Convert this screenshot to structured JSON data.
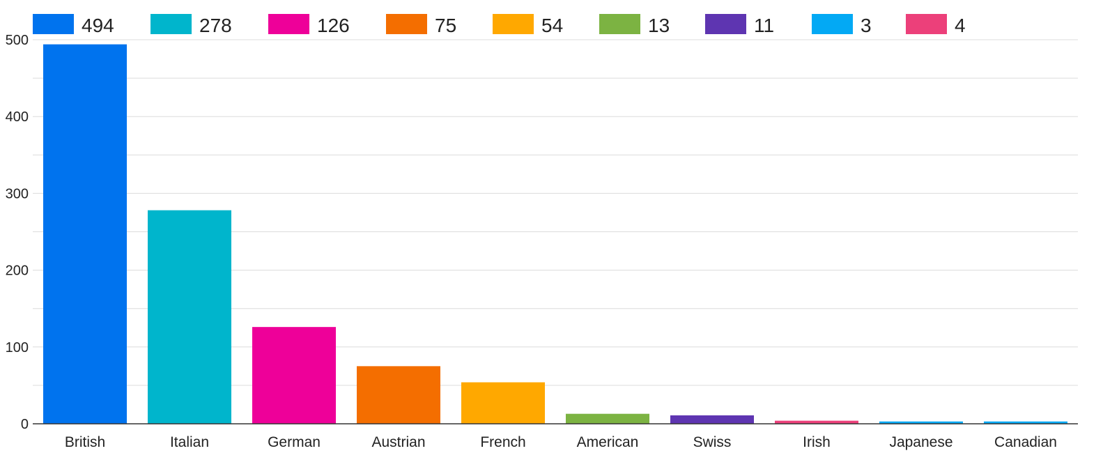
{
  "chart_data": {
    "type": "bar",
    "title": "",
    "xlabel": "",
    "ylabel": "",
    "categories": [
      "British",
      "Italian",
      "German",
      "Austrian",
      "French",
      "American",
      "Swiss",
      "Irish",
      "Japanese",
      "Canadian"
    ],
    "values": [
      494,
      278,
      126,
      75,
      54,
      13,
      11,
      4,
      3,
      3
    ],
    "colors": [
      "#0073ee",
      "#00b5cc",
      "#ee0099",
      "#f46e00",
      "#ffa800",
      "#7cb342",
      "#5e35b1",
      "#ec407a",
      "#03a9f4",
      "#03a9f4"
    ],
    "ylim": [
      0,
      500
    ],
    "yticks": [
      0,
      100,
      200,
      300,
      400,
      500
    ],
    "grid": true,
    "legend": {
      "placement": "top",
      "entries": [
        {
          "label": "494",
          "color": "#0073ee"
        },
        {
          "label": "278",
          "color": "#00b5cc"
        },
        {
          "label": "126",
          "color": "#ee0099"
        },
        {
          "label": "75",
          "color": "#f46e00"
        },
        {
          "label": "54",
          "color": "#ffa800"
        },
        {
          "label": "13",
          "color": "#7cb342"
        },
        {
          "label": "11",
          "color": "#5e35b1"
        },
        {
          "label": "3",
          "color": "#03a9f4"
        },
        {
          "label": "4",
          "color": "#ec407a"
        }
      ]
    }
  }
}
